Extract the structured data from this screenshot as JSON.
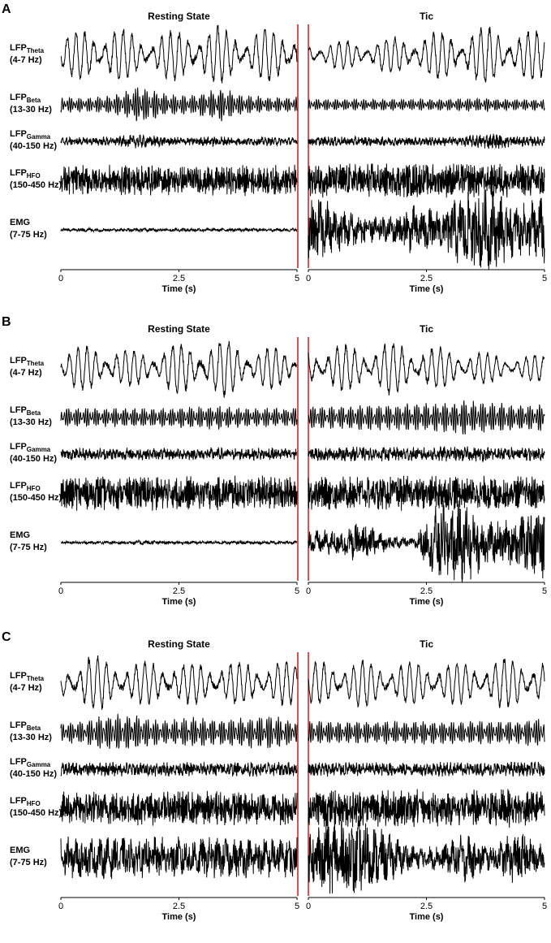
{
  "chart_data": [
    {
      "type": "line",
      "panel_label": "A",
      "columns": [
        {
          "title": "Resting State",
          "xlim": [
            0,
            5
          ],
          "xticks": [
            "0",
            "2.5",
            "5"
          ],
          "xlabel": "Time (s)"
        },
        {
          "title": "Tic",
          "xlim": [
            0,
            5
          ],
          "xticks": [
            "0",
            "2.5",
            "5"
          ],
          "xlabel": "Time (s)"
        }
      ],
      "rows": [
        {
          "key": "theta",
          "name": "LFP",
          "sub": "Theta",
          "band": "(4-7 Hz)"
        },
        {
          "key": "beta",
          "name": "LFP",
          "sub": "Beta",
          "band": "(13-30 Hz)"
        },
        {
          "key": "gamma",
          "name": "LFP",
          "sub": "Gamma",
          "band": "(40-150 Hz)"
        },
        {
          "key": "hfo",
          "name": "LFP",
          "sub": "HFO",
          "band": "(150-450 Hz)"
        },
        {
          "key": "emg",
          "name": "EMG",
          "sub": "",
          "band": "(7-75 Hz)"
        }
      ],
      "amplitude_profiles": {
        "theta": {
          "rest": [
            0.7,
            0.9,
            1.0,
            0.7,
            0.8,
            0.9,
            1.0,
            0.8,
            0.9,
            1.0
          ],
          "tic": [
            0.4,
            0.5,
            0.5,
            0.6,
            0.7,
            0.8,
            0.9,
            1.0,
            0.8,
            0.9
          ]
        },
        "beta": {
          "rest": [
            0.4,
            0.4,
            0.5,
            1.0,
            0.6,
            0.5,
            0.9,
            0.5,
            0.4,
            0.4
          ],
          "tic": [
            0.3,
            0.3,
            0.3,
            0.3,
            0.3,
            0.3,
            0.35,
            0.35,
            0.3,
            0.3
          ]
        },
        "gamma": {
          "rest": [
            0.35,
            0.35,
            0.4,
            0.6,
            0.4,
            0.35,
            0.45,
            0.35,
            0.35,
            0.35
          ],
          "tic": [
            0.4,
            0.4,
            0.4,
            0.4,
            0.4,
            0.4,
            0.45,
            0.7,
            0.45,
            0.4
          ]
        },
        "hfo": {
          "rest": [
            0.8,
            0.8,
            0.8,
            0.8,
            0.8,
            0.8,
            0.8,
            0.8,
            0.8,
            0.8
          ],
          "tic": [
            0.9,
            0.9,
            0.9,
            0.9,
            0.9,
            0.9,
            0.9,
            0.9,
            0.9,
            0.9
          ]
        },
        "emg": {
          "rest": [
            0.04,
            0.05,
            0.04,
            0.05,
            0.04,
            0.05,
            0.04,
            0.04,
            0.04,
            0.04
          ],
          "tic": [
            1.0,
            0.6,
            0.4,
            0.3,
            0.6,
            0.5,
            1.0,
            1.0,
            0.6,
            0.9
          ]
        }
      }
    },
    {
      "type": "line",
      "panel_label": "B",
      "columns": [
        {
          "title": "Resting State",
          "xlim": [
            0,
            5
          ],
          "xticks": [
            "0",
            "2.5",
            "5"
          ],
          "xlabel": "Time (s)"
        },
        {
          "title": "Tic",
          "xlim": [
            0,
            5
          ],
          "xticks": [
            "0",
            "2.5",
            "5"
          ],
          "xlabel": "Time (s)"
        }
      ],
      "rows": [
        {
          "key": "theta",
          "name": "LFP",
          "sub": "Theta",
          "band": "(4-7 Hz)"
        },
        {
          "key": "beta",
          "name": "LFP",
          "sub": "Beta",
          "band": "(13-30 Hz)"
        },
        {
          "key": "gamma",
          "name": "LFP",
          "sub": "Gamma",
          "band": "(40-150 Hz)"
        },
        {
          "key": "hfo",
          "name": "LFP",
          "sub": "HFO",
          "band": "(150-450 Hz)"
        },
        {
          "key": "emg",
          "name": "EMG",
          "sub": "",
          "band": "(7-75 Hz)"
        }
      ],
      "amplitude_profiles": {
        "theta": {
          "rest": [
            0.7,
            0.8,
            0.7,
            0.6,
            0.8,
            0.9,
            1.0,
            0.8,
            0.7,
            0.6
          ],
          "tic": [
            0.7,
            0.8,
            0.8,
            0.9,
            0.8,
            0.7,
            0.6,
            0.5,
            0.4,
            0.5
          ]
        },
        "beta": {
          "rest": [
            0.5,
            0.5,
            0.5,
            0.5,
            0.5,
            0.6,
            0.6,
            0.5,
            0.5,
            0.5
          ],
          "tic": [
            0.6,
            0.6,
            0.7,
            0.7,
            0.7,
            0.8,
            0.9,
            0.8,
            0.7,
            0.7
          ]
        },
        "gamma": {
          "rest": [
            0.5,
            0.5,
            0.55,
            0.5,
            0.5,
            0.5,
            0.55,
            0.5,
            0.55,
            0.5
          ],
          "tic": [
            0.6,
            0.6,
            0.6,
            0.6,
            0.6,
            0.65,
            0.65,
            0.6,
            0.6,
            0.6
          ]
        },
        "hfo": {
          "rest": [
            0.9,
            0.9,
            0.9,
            0.9,
            0.9,
            0.9,
            0.9,
            0.9,
            0.9,
            0.9
          ],
          "tic": [
            0.9,
            0.9,
            0.9,
            0.9,
            0.9,
            0.9,
            0.9,
            0.9,
            0.9,
            0.9
          ]
        },
        "emg": {
          "rest": [
            0.04,
            0.04,
            0.04,
            0.06,
            0.04,
            0.04,
            0.04,
            0.04,
            0.04,
            0.04
          ],
          "tic": [
            0.3,
            0.3,
            0.5,
            0.2,
            0.1,
            1.0,
            1.0,
            0.5,
            0.6,
            1.0
          ]
        }
      }
    },
    {
      "type": "line",
      "panel_label": "C",
      "columns": [
        {
          "title": "Resting State",
          "xlim": [
            0,
            5
          ],
          "xticks": [
            "0",
            "2.5",
            "5"
          ],
          "xlabel": "Time (s)"
        },
        {
          "title": "Tic",
          "xlim": [
            0,
            5
          ],
          "xticks": [
            "0",
            "2.5",
            "5"
          ],
          "xlabel": "Time (s)"
        }
      ],
      "rows": [
        {
          "key": "theta",
          "name": "LFP",
          "sub": "Theta",
          "band": "(4-7 Hz)"
        },
        {
          "key": "beta",
          "name": "LFP",
          "sub": "Beta",
          "band": "(13-30 Hz)"
        },
        {
          "key": "gamma",
          "name": "LFP",
          "sub": "Gamma",
          "band": "(40-150 Hz)"
        },
        {
          "key": "hfo",
          "name": "LFP",
          "sub": "HFO",
          "band": "(150-450 Hz)"
        },
        {
          "key": "emg",
          "name": "EMG",
          "sub": "",
          "band": "(7-75 Hz)"
        }
      ],
      "amplitude_profiles": {
        "theta": {
          "rest": [
            0.6,
            1.0,
            0.8,
            0.7,
            0.8,
            0.7,
            0.8,
            0.7,
            0.8,
            0.7
          ],
          "tic": [
            0.7,
            0.8,
            0.8,
            0.7,
            0.7,
            0.8,
            0.7,
            0.8,
            0.9,
            0.8
          ]
        },
        "beta": {
          "rest": [
            0.5,
            0.7,
            1.0,
            0.9,
            0.6,
            0.8,
            0.7,
            0.8,
            0.9,
            0.6
          ],
          "tic": [
            0.6,
            0.6,
            0.6,
            0.6,
            0.6,
            0.6,
            0.6,
            0.6,
            0.6,
            0.8
          ]
        },
        "gamma": {
          "rest": [
            0.6,
            0.6,
            0.6,
            0.6,
            0.6,
            0.6,
            0.6,
            0.6,
            0.6,
            0.6
          ],
          "tic": [
            0.6,
            0.6,
            0.6,
            0.6,
            0.6,
            0.6,
            0.6,
            0.6,
            0.6,
            0.6
          ]
        },
        "hfo": {
          "rest": [
            0.9,
            0.9,
            0.9,
            0.9,
            0.9,
            0.9,
            0.9,
            0.9,
            0.9,
            0.9
          ],
          "tic": [
            1.0,
            1.0,
            1.0,
            1.0,
            1.0,
            1.0,
            1.0,
            1.0,
            1.0,
            1.0
          ]
        },
        "emg": {
          "rest": [
            0.5,
            0.5,
            0.5,
            0.5,
            0.5,
            0.5,
            0.5,
            0.5,
            0.5,
            0.5
          ],
          "tic": [
            0.8,
            1.0,
            1.0,
            0.6,
            0.3,
            0.3,
            0.6,
            0.3,
            0.7,
            0.3
          ]
        }
      }
    }
  ],
  "colors": {
    "trace": "#000000",
    "separator": "#d62728"
  }
}
